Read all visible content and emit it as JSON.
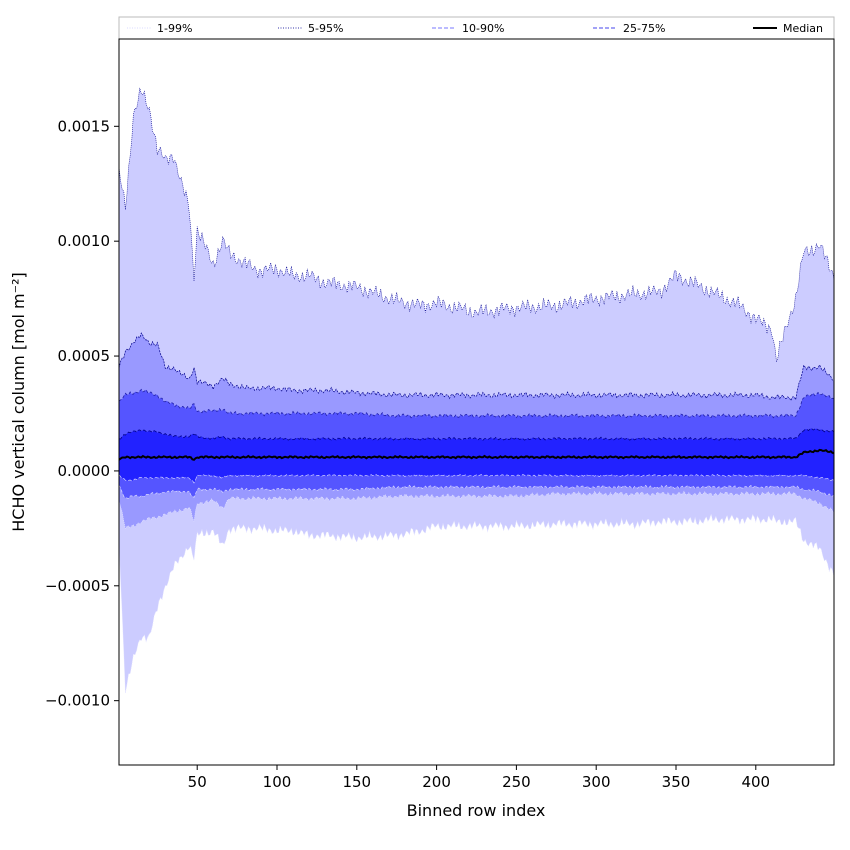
{
  "chart_data": {
    "type": "area",
    "xlabel": "Binned row index",
    "ylabel": "HCHO vertical column [mol m⁻²]",
    "xlim": [
      1,
      449
    ],
    "ylim": [
      -0.00128,
      0.00188
    ],
    "xticks": [
      50,
      100,
      150,
      200,
      250,
      300,
      350,
      400
    ],
    "xtick_labels": [
      "50",
      "100",
      "150",
      "200",
      "250",
      "300",
      "350",
      "400"
    ],
    "yticks": [
      -0.001,
      -0.0005,
      0.0,
      0.0005,
      0.001,
      0.0015
    ],
    "ytick_labels": [
      "−0.0010",
      "−0.0005",
      "0.0000",
      "0.0005",
      "0.0010",
      "0.0015"
    ],
    "legend_position": "top, above plot (5 columns)",
    "grid": false,
    "colors": {
      "band_1_99": "#ccccff",
      "band_5_95": "#9999ff",
      "band_10_90": "#5555ff",
      "band_25_75": "#2222ff",
      "line_1_99": "#e3e3ff",
      "line_5_95": "#00008b",
      "line_10_90": "#2020aa",
      "line_25_75": "#00008b",
      "median": "#000000"
    },
    "anchors_x": [
      1,
      5,
      10,
      15,
      20,
      25,
      30,
      35,
      40,
      45,
      48,
      50,
      60,
      66,
      70,
      80,
      90,
      100,
      110,
      120,
      130,
      150,
      175,
      190,
      200,
      225,
      250,
      275,
      300,
      325,
      340,
      350,
      360,
      375,
      390,
      400,
      410,
      413,
      420,
      425,
      430,
      440,
      449
    ],
    "series": [
      {
        "name": "1-99%",
        "key": "p1",
        "values": [
          -0.0003,
          -0.00095,
          -0.00082,
          -0.00072,
          -0.00072,
          -0.0006,
          -0.0005,
          -0.00042,
          -0.00038,
          -0.00032,
          -0.00038,
          -0.00028,
          -0.00026,
          -0.00033,
          -0.00025,
          -0.00025,
          -0.00025,
          -0.00026,
          -0.00026,
          -0.00028,
          -0.00028,
          -0.00029,
          -0.00028,
          -0.00026,
          -0.00024,
          -0.00024,
          -0.00024,
          -0.00023,
          -0.00023,
          -0.00023,
          -0.00022,
          -0.00022,
          -0.00022,
          -0.00021,
          -0.00021,
          -0.00021,
          -0.00021,
          -0.00022,
          -0.00022,
          -0.00022,
          -0.0003,
          -0.00034,
          -0.00045
        ]
      },
      {
        "name": "1-99%",
        "key": "p99",
        "values": [
          0.0013,
          0.00115,
          0.00155,
          0.00165,
          0.00158,
          0.0014,
          0.00135,
          0.00138,
          0.00125,
          0.00115,
          0.00085,
          0.00105,
          0.0009,
          0.001,
          0.00095,
          0.0009,
          0.00087,
          0.00088,
          0.00085,
          0.00085,
          0.00082,
          0.0008,
          0.00074,
          0.00072,
          0.00073,
          0.00069,
          0.00071,
          0.00072,
          0.00075,
          0.00077,
          0.00078,
          0.00085,
          0.00082,
          0.00077,
          0.00072,
          0.00066,
          0.00062,
          0.00048,
          0.00065,
          0.00075,
          0.00095,
          0.00098,
          0.00085
        ]
      },
      {
        "name": "5-95%",
        "key": "p5",
        "values": [
          -0.00012,
          -0.00025,
          -0.00024,
          -0.00022,
          -0.00021,
          -0.0002,
          -0.00019,
          -0.00018,
          -0.00017,
          -0.00016,
          -0.00022,
          -0.00014,
          -0.00013,
          -0.00016,
          -0.00012,
          -0.00012,
          -0.00012,
          -0.00012,
          -0.00012,
          -0.00012,
          -0.00012,
          -0.00012,
          -0.00011,
          -0.00011,
          -0.00011,
          -0.00011,
          -0.00011,
          -0.0001,
          -0.0001,
          -0.0001,
          -0.0001,
          -0.0001,
          -0.0001,
          -0.0001,
          -0.0001,
          -0.0001,
          -0.0001,
          -0.0001,
          -0.0001,
          -0.0001,
          -0.00012,
          -0.00014,
          -0.00018
        ]
      },
      {
        "name": "5-95%",
        "key": "p95",
        "values": [
          0.00045,
          0.00052,
          0.00056,
          0.00059,
          0.00056,
          0.00055,
          0.00045,
          0.00045,
          0.00042,
          0.0004,
          0.00045,
          0.00039,
          0.00037,
          0.0004,
          0.00038,
          0.00036,
          0.00036,
          0.00036,
          0.00035,
          0.00035,
          0.00035,
          0.00034,
          0.00033,
          0.00033,
          0.00033,
          0.00033,
          0.00033,
          0.00033,
          0.00033,
          0.00033,
          0.00033,
          0.00033,
          0.00033,
          0.00033,
          0.00033,
          0.00033,
          0.00032,
          0.00032,
          0.00032,
          0.00032,
          0.00045,
          0.00045,
          0.0004
        ]
      },
      {
        "name": "10-90%",
        "key": "p10",
        "values": [
          -6e-05,
          -0.00012,
          -0.00011,
          -0.00011,
          -0.0001,
          -0.0001,
          -9e-05,
          -9e-05,
          -9e-05,
          -9e-05,
          -0.00012,
          -8e-05,
          -8e-05,
          -9e-05,
          -8e-05,
          -8e-05,
          -8e-05,
          -8e-05,
          -8e-05,
          -8e-05,
          -8e-05,
          -8e-05,
          -7e-05,
          -7e-05,
          -7e-05,
          -7e-05,
          -7e-05,
          -7e-05,
          -7e-05,
          -7e-05,
          -7e-05,
          -7e-05,
          -7e-05,
          -7e-05,
          -7e-05,
          -7e-05,
          -7e-05,
          -7e-05,
          -7e-05,
          -7e-05,
          -8e-05,
          -9e-05,
          -0.00011
        ]
      },
      {
        "name": "10-90%",
        "key": "p90",
        "values": [
          0.0003,
          0.00033,
          0.00034,
          0.00035,
          0.00034,
          0.00033,
          0.0003,
          0.00029,
          0.00028,
          0.00027,
          0.00029,
          0.00026,
          0.00026,
          0.00027,
          0.00025,
          0.00025,
          0.00025,
          0.00025,
          0.00025,
          0.00025,
          0.00025,
          0.00025,
          0.00024,
          0.00024,
          0.00024,
          0.00024,
          0.00024,
          0.00024,
          0.00024,
          0.00024,
          0.00024,
          0.00024,
          0.00024,
          0.00024,
          0.00024,
          0.00024,
          0.00024,
          0.00024,
          0.00024,
          0.00024,
          0.00032,
          0.00034,
          0.00031
        ]
      },
      {
        "name": "25-75%",
        "key": "p25",
        "values": [
          -2e-05,
          -4e-05,
          -4e-05,
          -3e-05,
          -3e-05,
          -3e-05,
          -3e-05,
          -3e-05,
          -3e-05,
          -3e-05,
          -5e-05,
          -2e-05,
          -2e-05,
          -3e-05,
          -2e-05,
          -2e-05,
          -2e-05,
          -2e-05,
          -2e-05,
          -2e-05,
          -2e-05,
          -2e-05,
          -2e-05,
          -2e-05,
          -2e-05,
          -2e-05,
          -2e-05,
          -2e-05,
          -2e-05,
          -2e-05,
          -2e-05,
          -2e-05,
          -2e-05,
          -2e-05,
          -2e-05,
          -2e-05,
          -2e-05,
          -2e-05,
          -2e-05,
          -2e-05,
          -2e-05,
          -3e-05,
          -4e-05
        ]
      },
      {
        "name": "25-75%",
        "key": "p75",
        "values": [
          0.00014,
          0.00016,
          0.00017,
          0.00018,
          0.00017,
          0.00017,
          0.00016,
          0.00015,
          0.00015,
          0.00015,
          0.00016,
          0.00015,
          0.00014,
          0.00015,
          0.00014,
          0.00014,
          0.00014,
          0.00014,
          0.00014,
          0.00014,
          0.00014,
          0.00014,
          0.00014,
          0.00014,
          0.00014,
          0.00014,
          0.00014,
          0.00014,
          0.00014,
          0.00014,
          0.00014,
          0.00014,
          0.00014,
          0.00014,
          0.00014,
          0.00014,
          0.00014,
          0.00014,
          0.00014,
          0.00014,
          0.00018,
          0.00018,
          0.00017
        ]
      },
      {
        "name": "Median",
        "key": "p50",
        "values": [
          5e-05,
          6e-05,
          6e-05,
          6e-05,
          6e-05,
          6e-05,
          6e-05,
          6e-05,
          6e-05,
          6e-05,
          5e-05,
          6e-05,
          6e-05,
          6e-05,
          6e-05,
          6e-05,
          6e-05,
          6e-05,
          6e-05,
          6e-05,
          6e-05,
          6e-05,
          6e-05,
          6e-05,
          6e-05,
          6e-05,
          6e-05,
          6e-05,
          6e-05,
          6e-05,
          6e-05,
          6e-05,
          6e-05,
          6e-05,
          6e-05,
          6e-05,
          6e-05,
          6e-05,
          6e-05,
          6e-05,
          8e-05,
          9e-05,
          8e-05
        ]
      }
    ],
    "legend": [
      {
        "label": "1-99%",
        "style": "dotted",
        "color": "#d8d8ff"
      },
      {
        "label": "5-95%",
        "style": "dotted",
        "color": "#3333aa"
      },
      {
        "label": "10-90%",
        "style": "dashed",
        "color": "#7777ff"
      },
      {
        "label": "25-75%",
        "style": "dashed",
        "color": "#4444ee"
      },
      {
        "label": "Median",
        "style": "solid",
        "color": "#000000"
      }
    ]
  }
}
